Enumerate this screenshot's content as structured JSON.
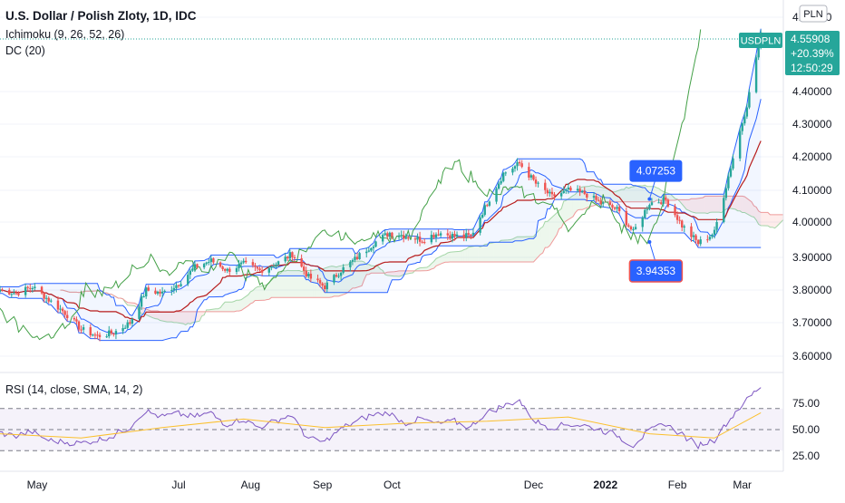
{
  "header": {
    "title": "U.S. Dollar / Polish Zloty, 1D, IDC",
    "indicator_1": "Ichimoku (9, 26, 52, 26)",
    "indicator_2": "DC (20)",
    "currency_badge": "PLN"
  },
  "price_tag": {
    "symbol": "USDPLN",
    "price": "4.55908",
    "change": "+20.39%",
    "countdown": "12:50:29"
  },
  "rsi": {
    "label": "RSI (14, close, SMA, 14, 2)"
  },
  "colors": {
    "up": "#26a69a",
    "down": "#ef5350",
    "donchian": "#2962ff",
    "conversion": "#2962ff",
    "base": "#b71c1c",
    "lagging": "#43a047",
    "rsi_line": "#7e57c2",
    "rsi_ma": "#fbc02d",
    "callout": "#2962ff"
  },
  "chart_data": [
    {
      "type": "candlestick",
      "title": "U.S. Dollar / Polish Zloty, 1D, IDC",
      "y_ticks": [
        "4.60000",
        "4.40000",
        "4.30000",
        "4.20000",
        "4.10000",
        "4.00000",
        "3.90000",
        "3.80000",
        "3.70000",
        "3.60000"
      ],
      "x_ticks": [
        "May",
        "Jul",
        "Aug",
        "Sep",
        "Oct",
        "Dec",
        "2022",
        "Feb",
        "Mar"
      ],
      "ylim": [
        3.55,
        4.66
      ],
      "x_range": [
        "2021-04-15",
        "2022-03-14"
      ],
      "last_price": 4.55908,
      "annotations": [
        {
          "label": "4.07253",
          "date": "2022-01-20",
          "value": 4.07253
        },
        {
          "label": "3.94353",
          "date": "2022-01-20",
          "value": 3.94353
        }
      ],
      "closes": [
        [
          "2021-04-15",
          3.8
        ],
        [
          "2021-04-22",
          3.79
        ],
        [
          "2021-04-29",
          3.81
        ],
        [
          "2021-05-06",
          3.77
        ],
        [
          "2021-05-13",
          3.73
        ],
        [
          "2021-05-20",
          3.68
        ],
        [
          "2021-05-27",
          3.66
        ],
        [
          "2021-06-03",
          3.67
        ],
        [
          "2021-06-10",
          3.7
        ],
        [
          "2021-06-17",
          3.8
        ],
        [
          "2021-06-24",
          3.79
        ],
        [
          "2021-07-01",
          3.82
        ],
        [
          "2021-07-08",
          3.87
        ],
        [
          "2021-07-15",
          3.89
        ],
        [
          "2021-07-22",
          3.86
        ],
        [
          "2021-07-29",
          3.88
        ],
        [
          "2021-08-05",
          3.86
        ],
        [
          "2021-08-12",
          3.88
        ],
        [
          "2021-08-19",
          3.91
        ],
        [
          "2021-08-26",
          3.84
        ],
        [
          "2021-09-02",
          3.81
        ],
        [
          "2021-09-09",
          3.86
        ],
        [
          "2021-09-16",
          3.9
        ],
        [
          "2021-09-23",
          3.94
        ],
        [
          "2021-09-30",
          3.97
        ],
        [
          "2021-10-07",
          3.96
        ],
        [
          "2021-10-14",
          3.95
        ],
        [
          "2021-10-21",
          3.97
        ],
        [
          "2021-10-28",
          3.96
        ],
        [
          "2021-11-04",
          3.96
        ],
        [
          "2021-11-11",
          4.06
        ],
        [
          "2021-11-18",
          4.15
        ],
        [
          "2021-11-25",
          4.18
        ],
        [
          "2021-12-02",
          4.12
        ],
        [
          "2021-12-09",
          4.08
        ],
        [
          "2021-12-16",
          4.1
        ],
        [
          "2021-12-23",
          4.09
        ],
        [
          "2021-12-30",
          4.06
        ],
        [
          "2022-01-06",
          4.04
        ],
        [
          "2022-01-13",
          3.97
        ],
        [
          "2022-01-20",
          4.06
        ],
        [
          "2022-01-27",
          4.07
        ],
        [
          "2022-02-03",
          3.99
        ],
        [
          "2022-02-10",
          3.94
        ],
        [
          "2022-02-17",
          3.97
        ],
        [
          "2022-02-24",
          4.17
        ],
        [
          "2022-03-03",
          4.36
        ],
        [
          "2022-03-09",
          4.55908
        ]
      ]
    },
    {
      "type": "line",
      "title": "RSI (14, close, SMA, 14, 2)",
      "y_ticks": [
        "75.00",
        "50.00",
        "25.00"
      ],
      "ylim": [
        17,
        92
      ],
      "bands": [
        30,
        70
      ],
      "series": [
        {
          "name": "RSI",
          "x": [
            "2021-04-15",
            "2021-04-22",
            "2021-04-29",
            "2021-05-06",
            "2021-05-13",
            "2021-05-20",
            "2021-05-27",
            "2021-06-03",
            "2021-06-10",
            "2021-06-17",
            "2021-06-24",
            "2021-07-01",
            "2021-07-08",
            "2021-07-15",
            "2021-07-22",
            "2021-07-29",
            "2021-08-05",
            "2021-08-12",
            "2021-08-19",
            "2021-08-26",
            "2021-09-02",
            "2021-09-09",
            "2021-09-16",
            "2021-09-23",
            "2021-09-30",
            "2021-10-07",
            "2021-10-14",
            "2021-10-21",
            "2021-10-28",
            "2021-11-04",
            "2021-11-11",
            "2021-11-18",
            "2021-11-25",
            "2021-12-02",
            "2021-12-09",
            "2021-12-16",
            "2021-12-23",
            "2021-12-30",
            "2022-01-06",
            "2022-01-13",
            "2022-01-20",
            "2022-01-27",
            "2022-02-03",
            "2022-02-10",
            "2022-02-17",
            "2022-02-24",
            "2022-03-03",
            "2022-03-09"
          ],
          "values": [
            47,
            44,
            48,
            40,
            38,
            37,
            40,
            44,
            52,
            68,
            62,
            65,
            62,
            66,
            55,
            60,
            52,
            58,
            64,
            42,
            38,
            50,
            58,
            64,
            66,
            56,
            60,
            55,
            58,
            52,
            66,
            72,
            78,
            58,
            52,
            55,
            54,
            50,
            45,
            35,
            48,
            56,
            46,
            35,
            40,
            60,
            78,
            90
          ]
        },
        {
          "name": "RSI-based MA",
          "x": [
            "2021-04-15",
            "2021-05-20",
            "2021-06-24",
            "2021-07-29",
            "2021-09-02",
            "2021-10-07",
            "2021-11-11",
            "2021-12-16",
            "2022-01-20",
            "2022-02-17",
            "2022-03-09"
          ],
          "values": [
            46,
            42,
            52,
            60,
            52,
            56,
            58,
            62,
            46,
            42,
            66
          ]
        }
      ]
    }
  ]
}
